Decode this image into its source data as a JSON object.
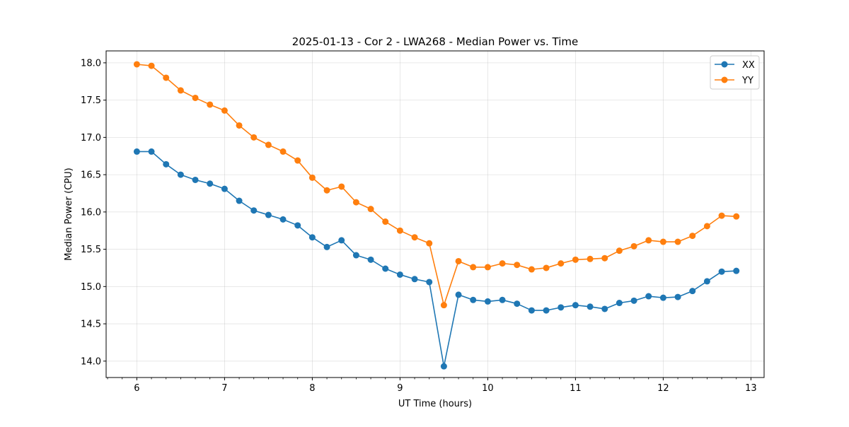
{
  "chart_data": {
    "type": "line",
    "title": "2025-01-13 - Cor 2 - LWA268 - Median Power vs. Time",
    "xlabel": "UT Time (hours)",
    "ylabel": "Median Power (CPU)",
    "xlim": [
      5.65,
      13.15
    ],
    "ylim": [
      13.78,
      18.16
    ],
    "grid": true,
    "legend_position": "top-right",
    "x_ticks": [
      6,
      7,
      8,
      9,
      10,
      11,
      12,
      13
    ],
    "x_tick_labels": [
      "6",
      "7",
      "8",
      "9",
      "10",
      "11",
      "12",
      "13"
    ],
    "y_ticks": [
      14.0,
      14.5,
      15.0,
      15.5,
      16.0,
      16.5,
      17.0,
      17.5,
      18.0
    ],
    "y_tick_labels": [
      "14.0",
      "14.5",
      "15.0",
      "15.5",
      "16.0",
      "16.5",
      "17.0",
      "17.5",
      "18.0"
    ],
    "x": [
      6.0,
      6.1667,
      6.3333,
      6.5,
      6.6667,
      6.8333,
      7.0,
      7.1667,
      7.3333,
      7.5,
      7.6667,
      7.8333,
      8.0,
      8.1667,
      8.3333,
      8.5,
      8.6667,
      8.8333,
      9.0,
      9.1667,
      9.3333,
      9.5,
      9.6667,
      9.8333,
      10.0,
      10.1667,
      10.3333,
      10.5,
      10.6667,
      10.8333,
      11.0,
      11.1667,
      11.3333,
      11.5,
      11.6667,
      11.8333,
      12.0,
      12.1667,
      12.3333,
      12.5,
      12.6667,
      12.8333
    ],
    "series": [
      {
        "name": "XX",
        "color": "#1f77b4",
        "values": [
          16.81,
          16.81,
          16.64,
          16.5,
          16.43,
          16.38,
          16.31,
          16.15,
          16.02,
          15.96,
          15.9,
          15.82,
          15.66,
          15.53,
          15.62,
          15.42,
          15.36,
          15.24,
          15.16,
          15.1,
          15.06,
          13.93,
          14.89,
          14.82,
          14.8,
          14.82,
          14.77,
          14.68,
          14.68,
          14.72,
          14.75,
          14.73,
          14.7,
          14.78,
          14.81,
          14.87,
          14.85,
          14.86,
          14.94,
          15.07,
          15.2,
          15.21
        ]
      },
      {
        "name": "YY",
        "color": "#ff7f0e",
        "values": [
          17.98,
          17.96,
          17.8,
          17.63,
          17.53,
          17.44,
          17.36,
          17.16,
          17.0,
          16.9,
          16.81,
          16.69,
          16.46,
          16.29,
          16.34,
          16.13,
          16.04,
          15.87,
          15.75,
          15.66,
          15.58,
          14.75,
          15.34,
          15.26,
          15.26,
          15.31,
          15.29,
          15.23,
          15.25,
          15.31,
          15.36,
          15.37,
          15.38,
          15.48,
          15.54,
          15.62,
          15.6,
          15.6,
          15.68,
          15.81,
          15.95,
          15.94
        ]
      }
    ]
  }
}
